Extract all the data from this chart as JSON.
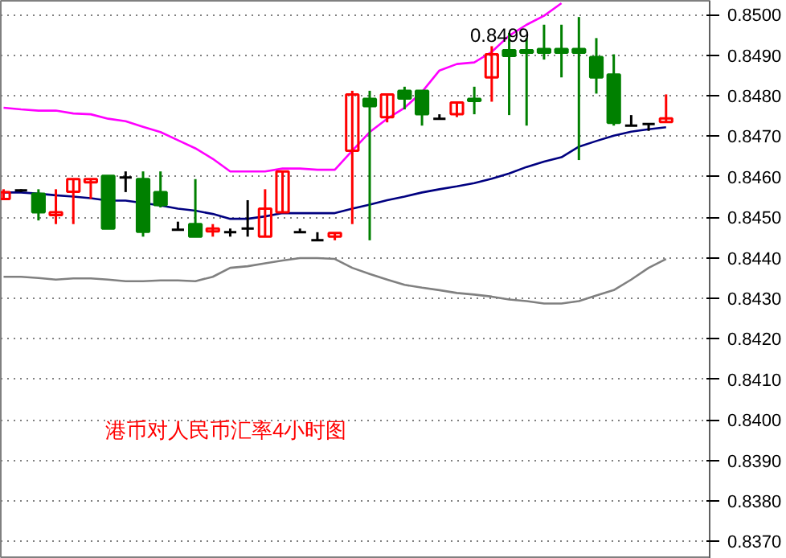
{
  "chart_data": {
    "type": "candlestick",
    "title": "港币对人民币汇率4小时图",
    "categories": [
      null,
      null,
      null,
      null,
      null,
      null,
      null,
      null,
      null,
      null,
      null,
      null,
      null,
      null,
      null,
      null,
      null,
      null,
      null,
      null,
      null,
      null,
      null,
      null,
      null,
      null,
      null,
      null,
      null,
      null,
      null,
      null,
      null,
      null,
      null,
      null,
      null,
      null,
      null
    ],
    "ohlc": [
      [
        0.84545,
        0.84569,
        0.84545,
        0.84562
      ],
      [
        0.84566,
        0.84569,
        0.84562,
        0.84566
      ],
      [
        0.84558,
        0.84569,
        0.84492,
        0.84512
      ],
      [
        0.84505,
        0.84569,
        0.84483,
        0.84512
      ],
      [
        0.84563,
        0.84594,
        0.84483,
        0.84594
      ],
      [
        0.84586,
        0.84594,
        0.84545,
        0.84594
      ],
      [
        0.84602,
        0.84602,
        0.84472,
        0.84472
      ],
      [
        0.84598,
        0.84613,
        0.84562,
        0.84598
      ],
      [
        0.84594,
        0.84613,
        0.84452,
        0.84464
      ],
      [
        0.84562,
        0.84613,
        0.84524,
        0.8453
      ],
      [
        0.84469,
        0.84489,
        0.84469,
        0.84469
      ],
      [
        0.84483,
        0.84594,
        0.84452,
        0.84452
      ],
      [
        0.84465,
        0.84483,
        0.84452,
        0.84472
      ],
      [
        0.84463,
        0.84472,
        0.84452,
        0.84463
      ],
      [
        0.84472,
        0.84542,
        0.84452,
        0.84472
      ],
      [
        0.84452,
        0.84569,
        0.84452,
        0.84521
      ],
      [
        0.84512,
        0.84613,
        0.84512,
        0.84613
      ],
      [
        0.84463,
        0.84472,
        0.84463,
        0.84463
      ],
      [
        0.84443,
        0.84463,
        0.84443,
        0.84443
      ],
      [
        0.84452,
        0.84461,
        0.84443,
        0.84461
      ],
      [
        0.84664,
        0.84812,
        0.84483,
        0.84803
      ],
      [
        0.84792,
        0.84812,
        0.84443,
        0.84774
      ],
      [
        0.84747,
        0.84803,
        0.84734,
        0.84803
      ],
      [
        0.84812,
        0.84822,
        0.84766,
        0.84793
      ],
      [
        0.84812,
        0.84812,
        0.84726,
        0.84754
      ],
      [
        0.84743,
        0.84754,
        0.84743,
        0.84743
      ],
      [
        0.84754,
        0.84783,
        0.84747,
        0.84783
      ],
      [
        0.84792,
        0.84822,
        0.84754,
        0.84787
      ],
      [
        0.84845,
        0.84922,
        0.84785,
        0.84902
      ],
      [
        0.84912,
        0.84955,
        0.84752,
        0.84898
      ],
      [
        0.84912,
        0.84942,
        0.84726,
        0.84906
      ],
      [
        0.84915,
        0.84975,
        0.84889,
        0.84906
      ],
      [
        0.84915,
        0.84975,
        0.84845,
        0.84906
      ],
      [
        0.84915,
        0.84994,
        0.84641,
        0.84906
      ],
      [
        0.84895,
        0.84942,
        0.84805,
        0.84845
      ],
      [
        0.84852,
        0.84902,
        0.84726,
        0.84733
      ],
      [
        0.84726,
        0.84752,
        0.84726,
        0.84726
      ],
      [
        0.8473,
        0.8473,
        0.84713,
        0.8473
      ],
      [
        0.84735,
        0.84803,
        0.84735,
        0.84744
      ]
    ],
    "colors": [
      "#ff0000",
      "#000000",
      "#008000",
      "#ff0000",
      "#ff0000",
      "#ff0000",
      "#008000",
      "#000000",
      "#008000",
      "#008000",
      "#000000",
      "#008000",
      "#ff0000",
      "#000000",
      "#000000",
      "#ff0000",
      "#ff0000",
      "#000000",
      "#000000",
      "#ff0000",
      "#ff0000",
      "#008000",
      "#ff0000",
      "#008000",
      "#008000",
      "#000000",
      "#ff0000",
      "#008000",
      "#ff0000",
      "#008000",
      "#008000",
      "#008000",
      "#008000",
      "#008000",
      "#008000",
      "#008000",
      "#000000",
      "#000000",
      "#ff0000"
    ],
    "series": [
      {
        "type": "line",
        "color": "#ff00ff",
        "values": [
          0.8477,
          0.84766,
          0.84763,
          0.84763,
          0.84756,
          0.84754,
          0.84743,
          0.84737,
          0.84723,
          0.8471,
          0.8469,
          0.8467,
          0.84644,
          0.84613,
          0.84613,
          0.84613,
          0.8462,
          0.8462,
          0.84617,
          0.84617,
          0.84664,
          0.8471,
          0.84743,
          0.8477,
          0.84809,
          0.84862,
          0.84878,
          0.84882,
          0.84908,
          0.84948,
          0.84975,
          0.84997,
          0.85028,
          null,
          null,
          null,
          null,
          null,
          null
        ]
      },
      {
        "type": "line",
        "color": "#000080",
        "values": [
          0.84561,
          0.84561,
          0.84558,
          0.84554,
          0.84551,
          0.84547,
          0.84541,
          0.84541,
          0.84535,
          0.84529,
          0.84521,
          0.84516,
          0.84508,
          0.84496,
          0.84496,
          0.84502,
          0.8451,
          0.8451,
          0.8451,
          0.8451,
          0.84521,
          0.84531,
          0.84542,
          0.84551,
          0.84561,
          0.84569,
          0.84576,
          0.84584,
          0.84595,
          0.84608,
          0.84624,
          0.84637,
          0.84648,
          0.84674,
          0.84688,
          0.84701,
          0.84711,
          0.84717,
          0.84722
        ]
      },
      {
        "type": "line",
        "color": "#808080",
        "values": [
          0.84353,
          0.84353,
          0.8435,
          0.84346,
          0.84349,
          0.84349,
          0.84346,
          0.84342,
          0.84342,
          0.84344,
          0.84344,
          0.84342,
          0.84353,
          0.84375,
          0.84379,
          0.84386,
          0.84393,
          0.84399,
          0.84399,
          0.84397,
          0.84375,
          0.8436,
          0.84346,
          0.84333,
          0.84326,
          0.8432,
          0.84313,
          0.84309,
          0.84304,
          0.84297,
          0.84293,
          0.84287,
          0.84287,
          0.84293,
          0.84307,
          0.8432,
          0.84346,
          0.84375,
          0.84397
        ]
      }
    ],
    "annotations": [
      "0.8499"
    ],
    "ylim": [
      0.83657,
      0.85034
    ],
    "yticks": [
      {
        "value": 0.837,
        "label": "0.8370"
      },
      {
        "value": 0.838,
        "label": "0.8380"
      },
      {
        "value": 0.839,
        "label": "0.8390"
      },
      {
        "value": 0.84,
        "label": "0.8400"
      },
      {
        "value": 0.841,
        "label": "0.8410"
      },
      {
        "value": 0.842,
        "label": "0.8420"
      },
      {
        "value": 0.843,
        "label": "0.8430"
      },
      {
        "value": 0.844,
        "label": "0.8440"
      },
      {
        "value": 0.845,
        "label": "0.8450"
      },
      {
        "value": 0.846,
        "label": "0.8460"
      },
      {
        "value": 0.847,
        "label": "0.8470"
      },
      {
        "value": 0.848,
        "label": "0.8480"
      },
      {
        "value": 0.849,
        "label": "0.8490"
      },
      {
        "value": 0.85,
        "label": "0.8500"
      }
    ],
    "grid": "y",
    "tick_labels": "y"
  }
}
